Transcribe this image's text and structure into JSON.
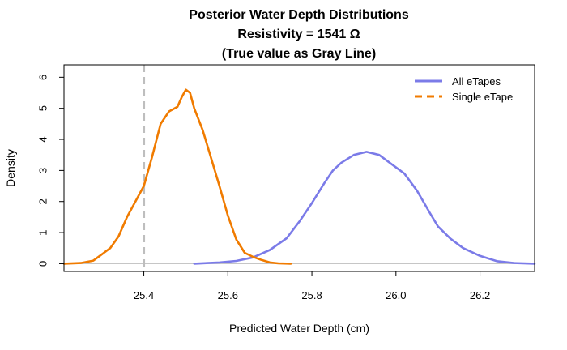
{
  "chart_data": {
    "type": "line",
    "title_lines": [
      "Posterior Water Depth Distributions",
      "Resistivity = 1541 Ω",
      "(True value as Gray Line)"
    ],
    "xlabel": "Predicted Water Depth (cm)",
    "ylabel": "Density",
    "xlim": [
      25.21,
      26.33
    ],
    "ylim": [
      -0.25,
      6.4
    ],
    "xticks": [
      25.4,
      25.6,
      25.8,
      26.0,
      26.2
    ],
    "xtick_labels": [
      "25.4",
      "25.6",
      "25.8",
      "26.0",
      "26.2"
    ],
    "yticks": [
      0,
      1,
      2,
      3,
      4,
      5,
      6
    ],
    "ytick_labels": [
      "0",
      "1",
      "2",
      "3",
      "4",
      "5",
      "6"
    ],
    "legend_position": "top-right",
    "baseline": 0,
    "reference_line": {
      "x": 25.4,
      "color": "#bebebe",
      "style": "dashed"
    },
    "series": [
      {
        "name": "All eTapes",
        "color": "#7b7be8",
        "dash": "solid",
        "x": [
          25.52,
          25.58,
          25.62,
          25.66,
          25.7,
          25.74,
          25.77,
          25.8,
          25.83,
          25.85,
          25.87,
          25.9,
          25.93,
          25.96,
          25.99,
          26.02,
          26.05,
          26.08,
          26.1,
          26.13,
          26.16,
          26.2,
          26.24,
          26.28,
          26.33
        ],
        "y": [
          0.0,
          0.04,
          0.09,
          0.2,
          0.44,
          0.82,
          1.35,
          1.95,
          2.6,
          3.0,
          3.25,
          3.5,
          3.6,
          3.5,
          3.2,
          2.9,
          2.35,
          1.65,
          1.2,
          0.8,
          0.5,
          0.25,
          0.08,
          0.02,
          0.0
        ]
      },
      {
        "name": "Single eTape",
        "color": "#f07b00",
        "dash": "dashed",
        "x": [
          25.21,
          25.25,
          25.28,
          25.3,
          25.32,
          25.34,
          25.36,
          25.38,
          25.4,
          25.42,
          25.44,
          25.46,
          25.48,
          25.49,
          25.5,
          25.51,
          25.52,
          25.54,
          25.56,
          25.58,
          25.6,
          25.62,
          25.64,
          25.66,
          25.68,
          25.7,
          25.72,
          25.75
        ],
        "y": [
          0.0,
          0.02,
          0.1,
          0.3,
          0.5,
          0.88,
          1.5,
          2.0,
          2.5,
          3.45,
          4.5,
          4.9,
          5.05,
          5.35,
          5.6,
          5.5,
          5.0,
          4.3,
          3.4,
          2.5,
          1.55,
          0.78,
          0.35,
          0.22,
          0.12,
          0.04,
          0.01,
          0.0
        ]
      }
    ]
  }
}
